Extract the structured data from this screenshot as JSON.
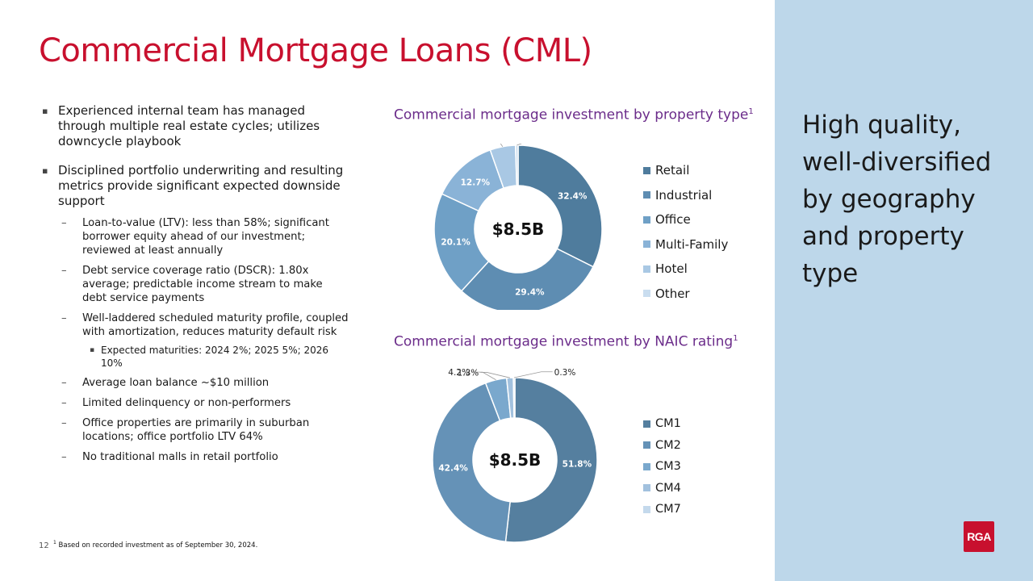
{
  "title": "Commercial Mortgage Loans (CML)",
  "bullets": [
    {
      "text": "Experienced internal team has managed through multiple real estate cycles; utilizes downcycle playbook",
      "subs": []
    },
    {
      "text": "Disciplined portfolio underwriting and resulting metrics provide significant expected downside support",
      "subs": [
        {
          "text": "Loan-to-value (LTV): less than 58%; significant borrower equity ahead of our investment; reviewed at least annually",
          "subs": []
        },
        {
          "text": "Debt service coverage ratio (DSCR): 1.80x average; predictable income stream to make debt service payments",
          "subs": []
        },
        {
          "text": "Well-laddered scheduled maturity profile, coupled with amortization, reduces maturity default risk",
          "subs": [
            "Expected maturities: 2024 2%; 2025 5%; 2026 10%"
          ]
        },
        {
          "text": "Average loan balance ~$10 million",
          "subs": []
        },
        {
          "text": "Limited delinquency or non-performers",
          "subs": []
        },
        {
          "text": "Office properties are primarily in suburban locations; office portfolio LTV 64%",
          "subs": []
        },
        {
          "text": "No traditional malls in retail portfolio",
          "subs": []
        }
      ]
    }
  ],
  "markers": {
    "level1": "▪",
    "level2": "–",
    "level3": "▪"
  },
  "chart_data": [
    {
      "type": "pie",
      "style": "donut",
      "title": "Commercial mortgage investment by property type",
      "title_footnote": "1",
      "center_label": "$8.5B",
      "categories": [
        "Retail",
        "Industrial",
        "Office",
        "Multi-Family",
        "Hotel",
        "Other"
      ],
      "values": [
        32.4,
        29.4,
        20.1,
        12.7,
        4.9,
        0.5
      ],
      "labels": [
        "32.4%",
        "29.4%",
        "20.1%",
        "12.7%",
        "4.9%",
        "0.5%"
      ],
      "colors": [
        "#4f7c9d",
        "#5e8db2",
        "#6fa0c6",
        "#8ab3d7",
        "#a9c8e4",
        "#c9ddef"
      ],
      "legend": "right"
    },
    {
      "type": "pie",
      "style": "donut",
      "title": "Commercial mortgage investment by NAIC rating",
      "title_footnote": "1",
      "center_label": "$8.5B",
      "categories": [
        "CM1",
        "CM2",
        "CM3",
        "CM4",
        "CM7"
      ],
      "values": [
        51.8,
        42.4,
        4.2,
        1.3,
        0.3
      ],
      "labels": [
        "51.8%",
        "42.4%",
        "4.2%",
        "1.3%",
        "0.3%"
      ],
      "colors": [
        "#557f9f",
        "#6592b7",
        "#7aa8cd",
        "#a2c1de",
        "#c4d9ec"
      ],
      "legend": "right"
    }
  ],
  "panel_text": "High quality, well-diversified by geography and property type",
  "footer": {
    "page_number": "12",
    "footnote_mark": "1",
    "footnote": "Based on recorded investment as of September 30, 2024."
  },
  "logo": "RGA"
}
